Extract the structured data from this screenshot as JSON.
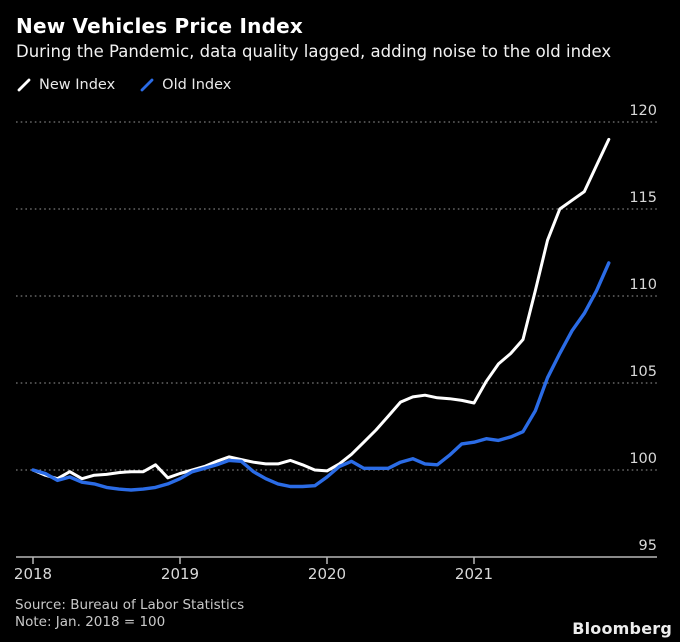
{
  "header": {
    "title": "New Vehicles Price Index",
    "subtitle": "During the Pandemic, data quality lagged, adding noise to the old index"
  },
  "legend": [
    {
      "label": "New Index",
      "color": "#ffffff"
    },
    {
      "label": "Old Index",
      "color": "#2b6ce6"
    }
  ],
  "footer": {
    "source": "Source: Bureau of Labor Statistics",
    "note": "Note: Jan. 2018 = 100",
    "brand": "Bloomberg"
  },
  "chart_data": {
    "type": "line",
    "title": "New Vehicles Price Index",
    "x_unit": "month",
    "x_start": "2018-01",
    "x_end": "2021-12",
    "x_tick_labels": [
      "2018",
      "2019",
      "2020",
      "2021"
    ],
    "y_ticks": [
      95,
      100,
      105,
      110,
      115,
      120
    ],
    "ylim": [
      95,
      120
    ],
    "grid": "horizontal-dotted",
    "legend_position": "top-left",
    "colors": {
      "background": "#000000",
      "grid": "#7a7a7a",
      "axis": "#b8b8b8",
      "tick_label": "#d9d9d9"
    },
    "series": [
      {
        "name": "New Index",
        "color": "#ffffff",
        "values": [
          100.0,
          99.7,
          99.5,
          99.9,
          99.5,
          99.7,
          99.75,
          99.85,
          99.9,
          99.9,
          100.3,
          99.55,
          99.8,
          100.0,
          100.2,
          100.5,
          100.75,
          100.6,
          100.45,
          100.35,
          100.35,
          100.55,
          100.3,
          100.0,
          99.95,
          100.35,
          100.9,
          101.6,
          102.3,
          103.1,
          103.9,
          104.2,
          104.3,
          104.15,
          104.1,
          104.0,
          103.85,
          105.1,
          106.1,
          106.7,
          107.5,
          110.3,
          113.2,
          115.0,
          115.5,
          116.0,
          117.5,
          119.0
        ]
      },
      {
        "name": "Old Index",
        "color": "#2b6ce6",
        "values": [
          100.0,
          99.8,
          99.4,
          99.6,
          99.3,
          99.2,
          99.0,
          98.9,
          98.85,
          98.9,
          99.0,
          99.2,
          99.5,
          99.9,
          100.1,
          100.3,
          100.55,
          100.5,
          99.9,
          99.5,
          99.2,
          99.05,
          99.05,
          99.1,
          99.6,
          100.2,
          100.5,
          100.1,
          100.1,
          100.1,
          100.45,
          100.65,
          100.35,
          100.3,
          100.85,
          101.5,
          101.6,
          101.8,
          101.7,
          101.9,
          102.2,
          103.4,
          105.3,
          106.7,
          108.0,
          109.0,
          110.3,
          111.9
        ]
      }
    ]
  }
}
